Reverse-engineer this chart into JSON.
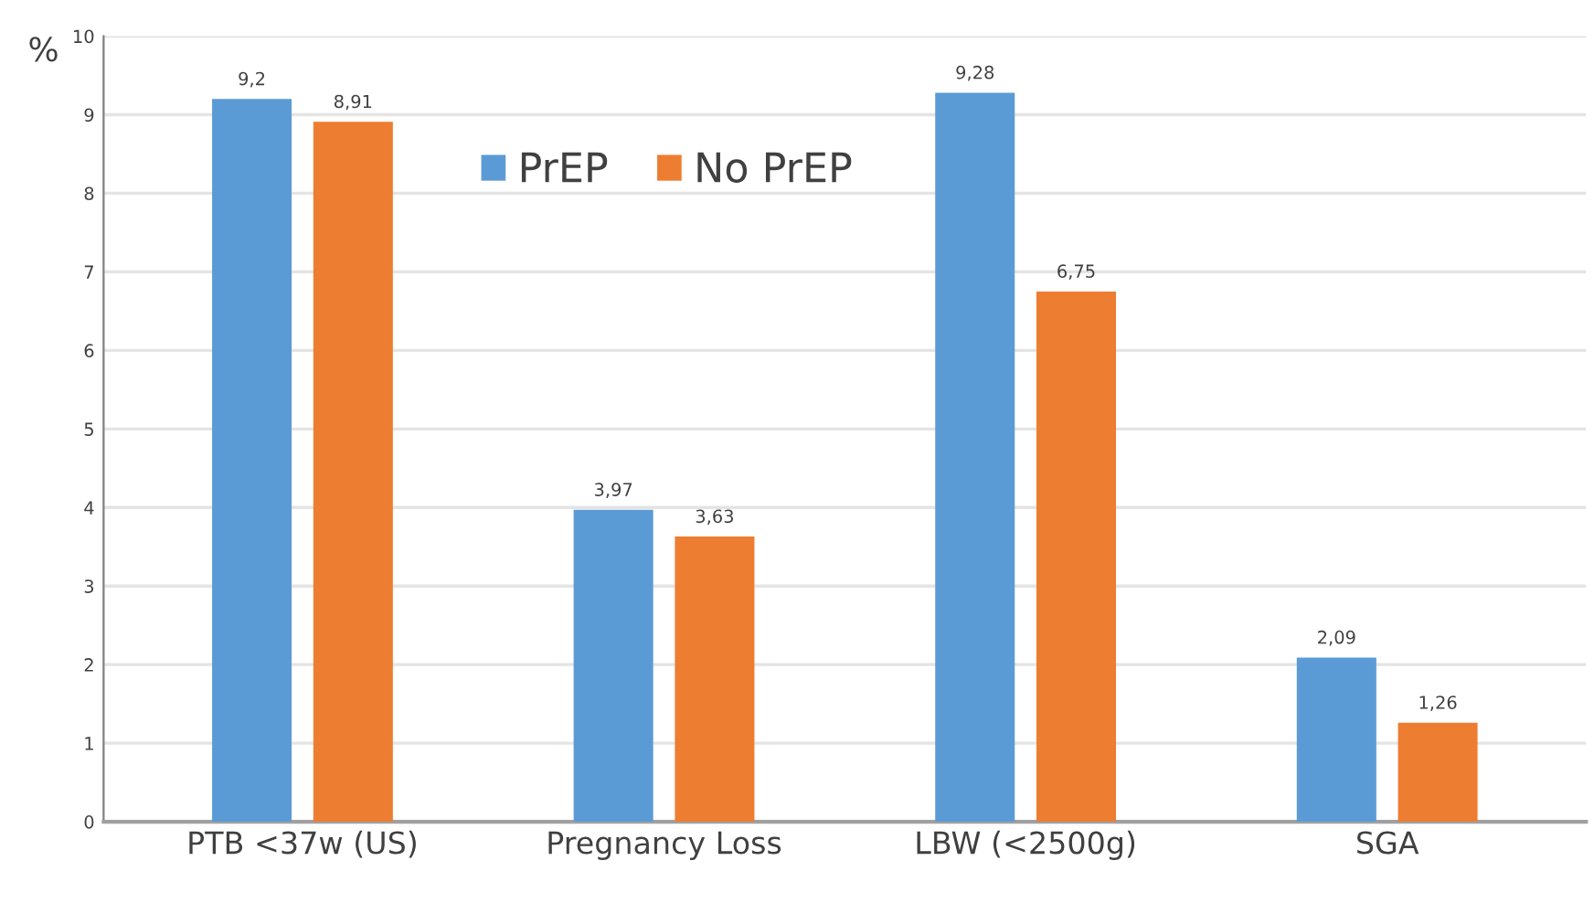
{
  "chart_data": {
    "type": "bar",
    "ylabel": "%",
    "categories": [
      "PTB <37w (US)",
      "Pregnancy Loss",
      "LBW (<2500g)",
      "SGA"
    ],
    "series": [
      {
        "name": "PrEP",
        "color": "#5b9bd5",
        "values": [
          9.2,
          3.97,
          9.28,
          2.09
        ],
        "value_labels": [
          "9,2",
          "3,97",
          "9,28",
          "2,09"
        ]
      },
      {
        "name": "No PrEP",
        "color": "#ed7d31",
        "values": [
          8.91,
          3.63,
          6.75,
          1.26
        ],
        "value_labels": [
          "8,91",
          "3,63",
          "6,75",
          "1,26"
        ]
      }
    ],
    "ylim": [
      0,
      10
    ],
    "yticks": [
      0,
      1,
      2,
      3,
      4,
      5,
      6,
      7,
      8,
      9,
      10
    ],
    "grid": "y",
    "legend": "top"
  }
}
